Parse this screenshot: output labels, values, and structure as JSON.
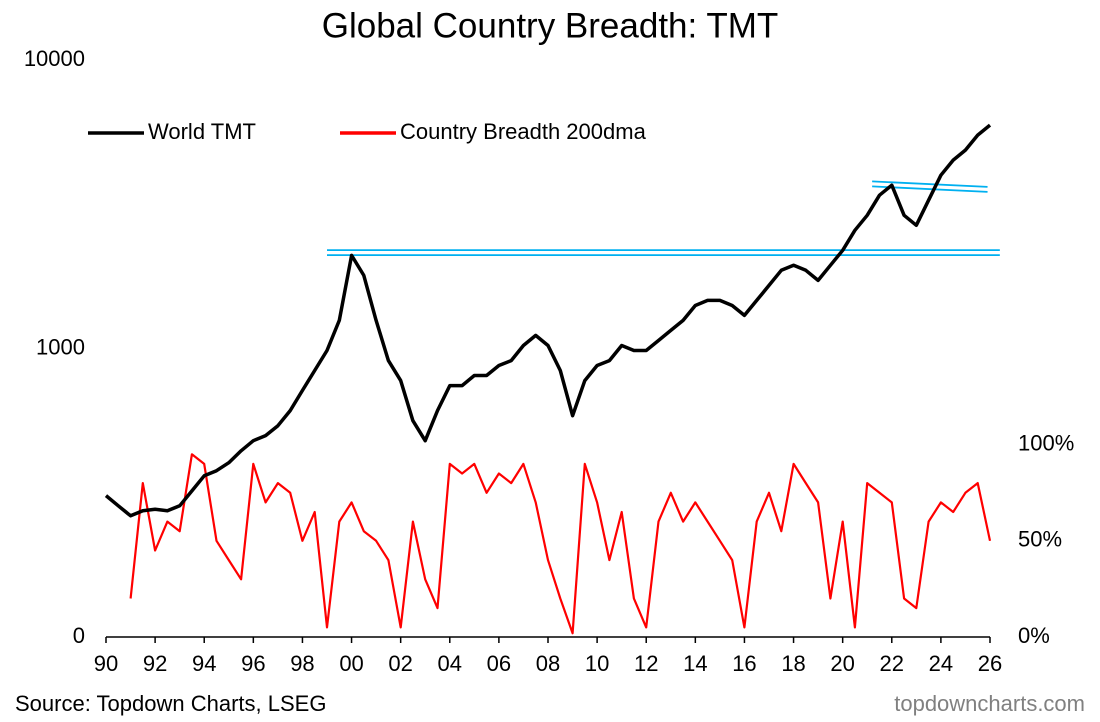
{
  "chart_data": {
    "type": "line",
    "title": "Global Country Breadth: TMT",
    "source": "Source: Topdown Charts, LSEG",
    "watermark": "topdowncharts.com",
    "log_y": true,
    "legend": "top-left",
    "x": [
      1990,
      1990.5,
      1991,
      1991.5,
      1992,
      1992.5,
      1993,
      1993.5,
      1994,
      1994.5,
      1995,
      1995.5,
      1996,
      1996.5,
      1997,
      1997.5,
      1998,
      1998.5,
      1999,
      1999.5,
      2000,
      2000.5,
      2001,
      2001.5,
      2002,
      2002.5,
      2003,
      2003.5,
      2004,
      2004.5,
      2005,
      2005.5,
      2006,
      2006.5,
      2007,
      2007.5,
      2008,
      2008.5,
      2009,
      2009.5,
      2010,
      2010.5,
      2011,
      2011.5,
      2012,
      2012.5,
      2013,
      2013.5,
      2014,
      2014.5,
      2015,
      2015.5,
      2016,
      2016.5,
      2017,
      2017.5,
      2018,
      2018.5,
      2019,
      2019.5,
      2020,
      2020.5,
      2021,
      2021.5,
      2022,
      2022.5,
      2023,
      2023.5,
      2024,
      2024.5,
      2025,
      2025.5,
      2026
    ],
    "series": [
      {
        "name": "World TMT",
        "color": "#000000",
        "axis": "y",
        "values": [
          309,
          285,
          263,
          274,
          277,
          274,
          285,
          321,
          362,
          377,
          402,
          442,
          479,
          499,
          540,
          609,
          715,
          839,
          984,
          1251,
          2103,
          1792,
          1251,
          908,
          774,
          562,
          479,
          609,
          744,
          744,
          806,
          806,
          873,
          908,
          1024,
          1110,
          1024,
          839,
          585,
          774,
          873,
          908,
          1024,
          984,
          984,
          1066,
          1155,
          1251,
          1410,
          1468,
          1468,
          1410,
          1302,
          1468,
          1655,
          1866,
          1942,
          1866,
          1722,
          1942,
          2189,
          2569,
          2896,
          3398,
          3681,
          2896,
          2674,
          3265,
          3988,
          4497,
          4870,
          5492,
          5947
        ]
      },
      {
        "name": "Country Breadth 200dma",
        "color": "#ff0000",
        "axis": "y2",
        "values": [
          null,
          null,
          20,
          80,
          45,
          60,
          55,
          95,
          90,
          50,
          40,
          30,
          90,
          70,
          80,
          75,
          50,
          65,
          5,
          60,
          70,
          55,
          50,
          40,
          5,
          60,
          30,
          15,
          90,
          85,
          90,
          75,
          85,
          80,
          90,
          70,
          40,
          20,
          2,
          90,
          70,
          40,
          65,
          20,
          5,
          60,
          75,
          60,
          70,
          60,
          50,
          40,
          5,
          60,
          75,
          55,
          90,
          80,
          70,
          20,
          60,
          5,
          80,
          75,
          70,
          20,
          15,
          60,
          70,
          65,
          75,
          80,
          50
        ]
      }
    ],
    "reference_lines": [
      {
        "x": [
          1999,
          2026.4
        ],
        "y": [
          2150,
          2150
        ],
        "color": "#00b0f0"
      },
      {
        "x": [
          2021.2,
          2025.9
        ],
        "y": [
          3720,
          3560
        ],
        "color": "#00b0f0"
      }
    ],
    "xlim": [
      1990,
      2026
    ],
    "xticks": [
      {
        "value": 1990,
        "label": "90"
      },
      {
        "value": 1992,
        "label": "92"
      },
      {
        "value": 1994,
        "label": "94"
      },
      {
        "value": 1996,
        "label": "96"
      },
      {
        "value": 1998,
        "label": "98"
      },
      {
        "value": 2000,
        "label": "00"
      },
      {
        "value": 2002,
        "label": "02"
      },
      {
        "value": 2004,
        "label": "04"
      },
      {
        "value": 2006,
        "label": "06"
      },
      {
        "value": 2008,
        "label": "08"
      },
      {
        "value": 2010,
        "label": "10"
      },
      {
        "value": 2012,
        "label": "12"
      },
      {
        "value": 2014,
        "label": "14"
      },
      {
        "value": 2016,
        "label": "16"
      },
      {
        "value": 2018,
        "label": "18"
      },
      {
        "value": 2020,
        "label": "20"
      },
      {
        "value": 2022,
        "label": "22"
      },
      {
        "value": 2024,
        "label": "24"
      },
      {
        "value": 2026,
        "label": "26"
      }
    ],
    "ylim": [
      100,
      10000
    ],
    "yticks": [
      {
        "value": 100,
        "label": "0"
      },
      1000,
      10000
    ],
    "y2lim": [
      0,
      300
    ],
    "y2ticks": [
      {
        "value": 0,
        "label": "0%"
      },
      {
        "value": 50,
        "label": "50%"
      },
      {
        "value": 100,
        "label": "100%"
      }
    ]
  }
}
